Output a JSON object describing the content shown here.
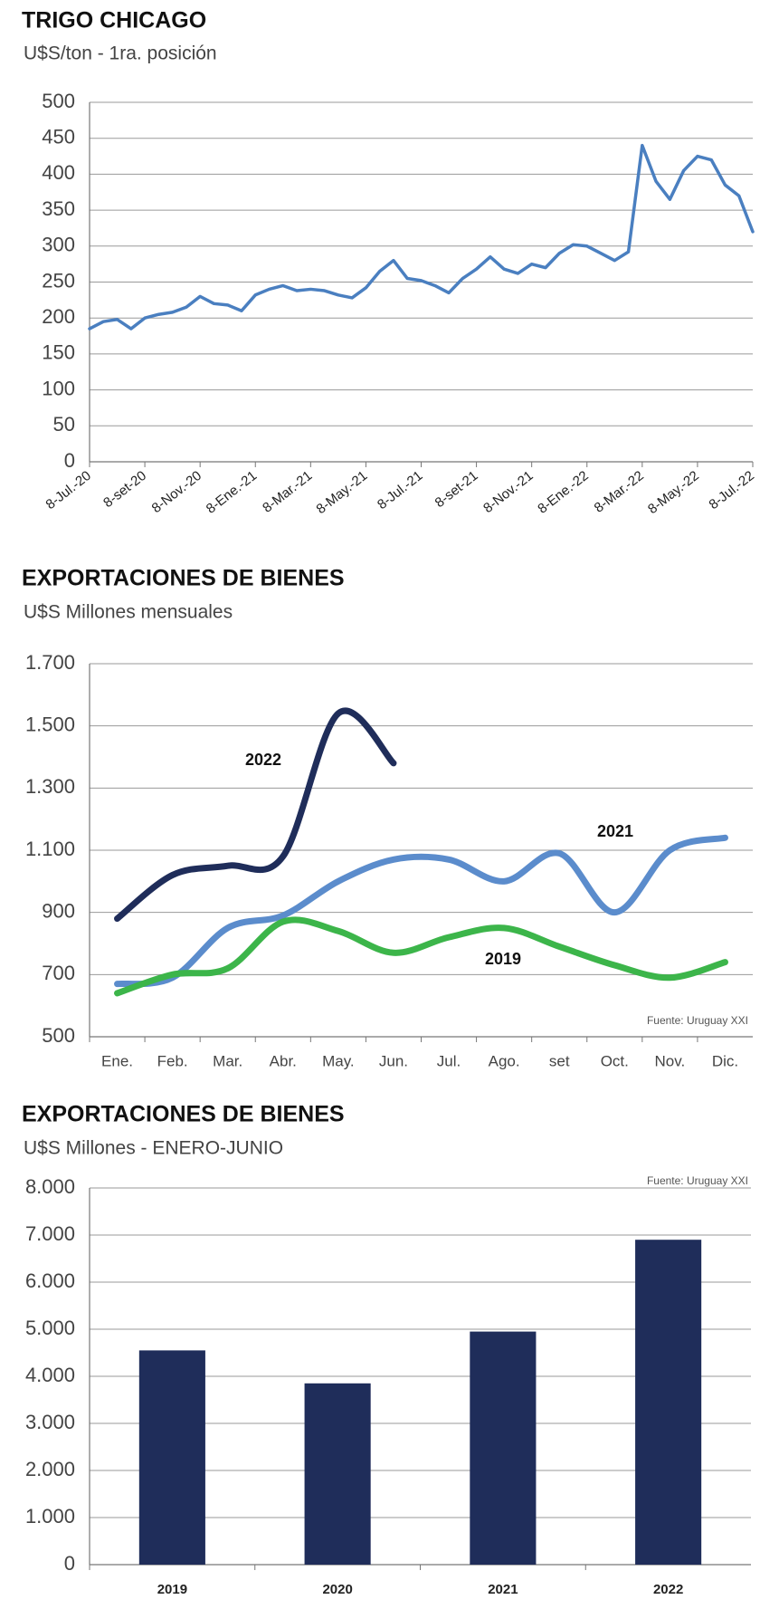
{
  "chart_data": [
    {
      "type": "line",
      "title": "TRIGO CHICAGO",
      "subtitle": "U$S/ton - 1ra. posición",
      "categories": [
        "8-Jul.-20",
        null,
        null,
        null,
        "8-set-20",
        null,
        null,
        null,
        "8-Nov.-20",
        null,
        null,
        null,
        "8-Ene.-21",
        null,
        null,
        null,
        "8-Mar.-21",
        null,
        null,
        null,
        "8-May.-21",
        null,
        null,
        null,
        "8-Jul.-21",
        null,
        null,
        null,
        "8-set-21",
        null,
        null,
        null,
        "8-Nov.-21",
        null,
        null,
        null,
        "8-Ene.-22",
        null,
        null,
        null,
        "8-Mar.-22",
        null,
        null,
        null,
        "8-May.-22",
        null,
        null,
        null,
        "8-Jul.-22"
      ],
      "series": [
        {
          "name": "Trigo",
          "color": "#4a7fc0",
          "values": [
            185,
            195,
            198,
            185,
            200,
            205,
            208,
            215,
            230,
            220,
            218,
            210,
            232,
            240,
            245,
            238,
            240,
            238,
            232,
            228,
            242,
            265,
            280,
            255,
            252,
            245,
            235,
            255,
            268,
            285,
            268,
            262,
            275,
            270,
            290,
            302,
            300,
            290,
            280,
            292,
            440,
            390,
            365,
            405,
            425,
            420,
            385,
            370,
            320
          ]
        }
      ],
      "ylim": [
        0,
        500
      ],
      "yticks": [
        0,
        50,
        100,
        150,
        200,
        250,
        300,
        350,
        400,
        450,
        500
      ],
      "grid": true
    },
    {
      "type": "line",
      "title": "EXPORTACIONES DE BIENES",
      "subtitle": "U$S Millones  mensuales",
      "categories": [
        "Ene.",
        "Feb.",
        "Mar.",
        "Abr.",
        "May.",
        "Jun.",
        "Jul.",
        "Ago.",
        "set",
        "Oct.",
        "Nov.",
        "Dic."
      ],
      "series": [
        {
          "name": "2022",
          "color": "#1f2d5a",
          "values": [
            880,
            1020,
            1050,
            1080,
            1540,
            1380,
            null,
            null,
            null,
            null,
            null,
            null
          ]
        },
        {
          "name": "2021",
          "color": "#5b8ccc",
          "values": [
            670,
            690,
            850,
            890,
            1000,
            1070,
            1070,
            1000,
            1090,
            900,
            1100,
            1140
          ]
        },
        {
          "name": "2019",
          "color": "#3cb54a",
          "values": [
            640,
            700,
            720,
            870,
            840,
            770,
            820,
            850,
            790,
            730,
            690,
            740
          ]
        }
      ],
      "ylim": [
        500,
        1700
      ],
      "yticks": [
        500,
        700,
        900,
        {
          "value": 1100,
          "label": "1.100"
        },
        {
          "value": 1300,
          "label": "1.300"
        },
        {
          "value": 1500,
          "label": "1.500"
        },
        {
          "value": 1700,
          "label": "1.700"
        }
      ],
      "grid": true,
      "note": "Fuente: Uruguay XXI"
    },
    {
      "type": "bar",
      "title": "EXPORTACIONES DE BIENES",
      "subtitle": "U$S Millones - ENERO-JUNIO",
      "categories": [
        "2019",
        "2020",
        "2021",
        "2022"
      ],
      "values": [
        4550,
        3850,
        4950,
        6900
      ],
      "color": "#1f2d5a",
      "ylim": [
        0,
        8000
      ],
      "yticks": [
        0,
        {
          "value": 1000,
          "label": "1.000"
        },
        {
          "value": 2000,
          "label": "2.000"
        },
        {
          "value": 3000,
          "label": "3.000"
        },
        {
          "value": 4000,
          "label": "4.000"
        },
        {
          "value": 5000,
          "label": "5.000"
        },
        {
          "value": 6000,
          "label": "6.000"
        },
        {
          "value": 7000,
          "label": "7.000"
        },
        {
          "value": 8000,
          "label": "8.000"
        }
      ],
      "grid": true,
      "note": "Fuente: Uruguay XXI"
    }
  ]
}
